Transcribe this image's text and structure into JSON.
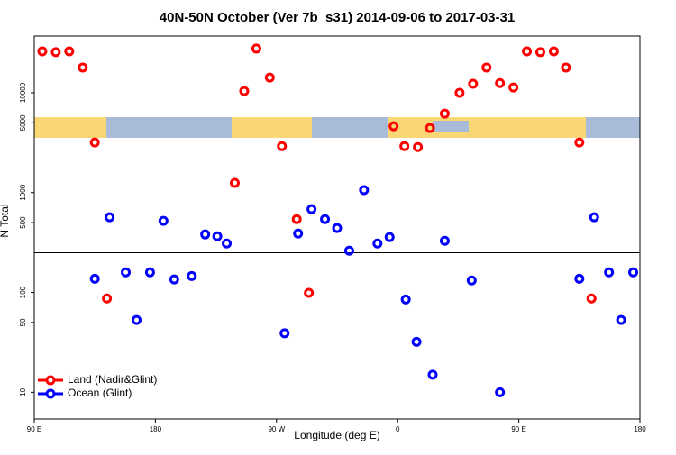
{
  "chart_data": {
    "type": "scatter",
    "title": "40N-50N October (Ver 7b_s31)   2014-09-06 to 2017-03-31",
    "x_label": "Longitude (deg E)",
    "y_label": "N Total",
    "xlim": [
      90,
      540
    ],
    "xticks": [
      {
        "value": 90,
        "label": "90 E"
      },
      {
        "value": 180,
        "label": "180"
      },
      {
        "value": 270,
        "label": "90 W"
      },
      {
        "value": 360,
        "label": "0"
      },
      {
        "value": 450,
        "label": "90 E"
      },
      {
        "value": 540,
        "label": "180"
      }
    ],
    "ylim": [
      5.4,
      37000
    ],
    "log_y": true,
    "yticks": [
      10,
      50,
      100,
      500,
      1000,
      5000,
      10000
    ],
    "hline": 250,
    "legend": "bottom-left",
    "series": [
      {
        "name": "Land (Nadir&Glint)",
        "color": "#ff0000",
        "x": [
          96,
          106,
          116,
          126,
          135,
          144,
          239,
          246,
          255,
          265,
          274,
          285,
          294,
          357,
          365,
          375,
          384,
          395,
          406,
          416,
          426,
          436,
          446,
          456,
          466,
          476,
          485,
          495,
          504
        ],
        "values": [
          26000,
          25500,
          26000,
          17900,
          3180,
          87,
          1250,
          10400,
          27700,
          14200,
          2920,
          542,
          99,
          4620,
          2920,
          2860,
          4430,
          6180,
          9980,
          12300,
          17900,
          12500,
          11300,
          26000,
          25500,
          26000,
          17900,
          3180,
          87
        ]
      },
      {
        "name": "Ocean (Glint)",
        "color": "#0000ff",
        "x": [
          135,
          146,
          158,
          166,
          176,
          186,
          194,
          207,
          217,
          226,
          233,
          276,
          286,
          296,
          306,
          315,
          324,
          335,
          345,
          354,
          366,
          374,
          386,
          395,
          415,
          436,
          495,
          506,
          517,
          526,
          535
        ],
        "values": [
          137,
          566,
          159,
          53,
          159,
          521,
          135,
          146,
          381,
          365,
          309,
          39,
          389,
          682,
          542,
          441,
          262,
          1060,
          309,
          358,
          85,
          32,
          15,
          329,
          132,
          10,
          137,
          566,
          159,
          53,
          159
        ]
      }
    ]
  }
}
